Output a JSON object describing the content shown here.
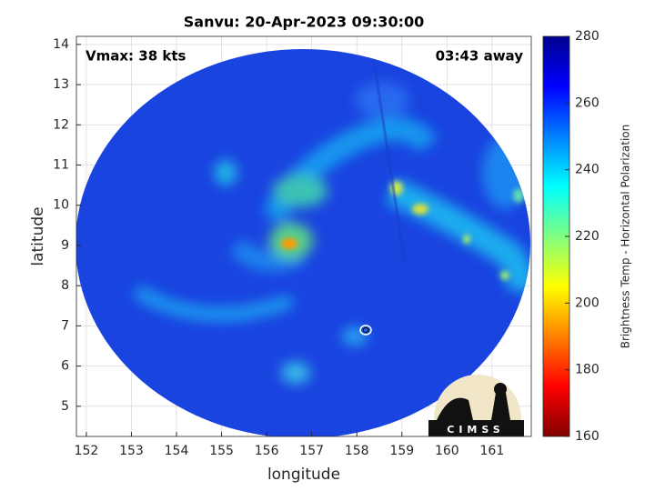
{
  "chart_data": {
    "type": "image",
    "title": "Sanvu: 20-Apr-2023 09:30:00",
    "annotations": [
      "Vmax: 38 kts",
      "03:43 away"
    ],
    "xlabel": "longitude",
    "ylabel": "latitude",
    "xlim": [
      151.78,
      161.87
    ],
    "ylim": [
      4.25,
      14.2
    ],
    "xticks": [
      152,
      153,
      154,
      155,
      156,
      157,
      158,
      159,
      160,
      161
    ],
    "yticks": [
      5,
      6,
      7,
      8,
      9,
      10,
      11,
      12,
      13,
      14
    ],
    "grid": true,
    "colorbar": {
      "label": "Brightness Temp - Horizontal Polarization",
      "lim": [
        160,
        280
      ],
      "ticks": [
        160,
        180,
        200,
        220,
        240,
        260,
        280
      ],
      "colormap": [
        "#800000",
        "#ff0000",
        "#ff8000",
        "#ffff00",
        "#80ff80",
        "#00ffff",
        "#0080ff",
        "#0000ff",
        "#00008f"
      ]
    },
    "logo_text": "CIMSS"
  }
}
